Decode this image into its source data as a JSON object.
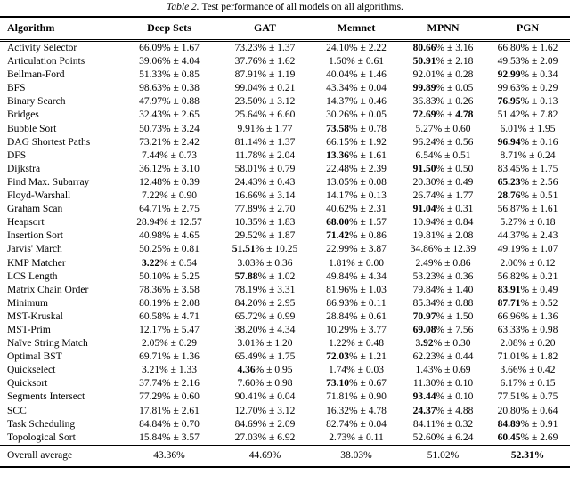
{
  "caption": {
    "label": "Table 2.",
    "text": " Test performance of all models on all algorithms."
  },
  "table": {
    "columns": [
      "Algorithm",
      "Deep Sets",
      "GAT",
      "Memnet",
      "MPNN",
      "PGN"
    ],
    "rows": [
      {
        "name": "Activity Selector",
        "cells": [
          {
            "m": "66.09",
            "s": "1.67",
            "b": 0
          },
          {
            "m": "73.23",
            "s": "1.37",
            "b": 0
          },
          {
            "m": "24.10",
            "s": "2.22",
            "b": 0
          },
          {
            "m": "80.66",
            "s": "3.16",
            "b": 1
          },
          {
            "m": "66.80",
            "s": "1.62",
            "b": 0
          }
        ]
      },
      {
        "name": "Articulation Points",
        "cells": [
          {
            "m": "39.06",
            "s": "4.04",
            "b": 0
          },
          {
            "m": "37.76",
            "s": "1.62",
            "b": 0
          },
          {
            "m": "1.50",
            "s": "0.61",
            "b": 0
          },
          {
            "m": "50.91",
            "s": "2.18",
            "b": 1
          },
          {
            "m": "49.53",
            "s": "2.09",
            "b": 0
          }
        ]
      },
      {
        "name": "Bellman-Ford",
        "cells": [
          {
            "m": "51.33",
            "s": "0.85",
            "b": 0
          },
          {
            "m": "87.91",
            "s": "1.19",
            "b": 0
          },
          {
            "m": "40.04",
            "s": "1.46",
            "b": 0
          },
          {
            "m": "92.01",
            "s": "0.28",
            "b": 0
          },
          {
            "m": "92.99",
            "s": "0.34",
            "b": 1
          }
        ]
      },
      {
        "name": "BFS",
        "cells": [
          {
            "m": "98.63",
            "s": "0.38",
            "b": 0
          },
          {
            "m": "99.04",
            "s": "0.21",
            "b": 0
          },
          {
            "m": "43.34",
            "s": "0.04",
            "b": 0
          },
          {
            "m": "99.89",
            "s": "0.05",
            "b": 1
          },
          {
            "m": "99.63",
            "s": "0.29",
            "b": 0
          }
        ]
      },
      {
        "name": "Binary Search",
        "cells": [
          {
            "m": "47.97",
            "s": "0.88",
            "b": 0
          },
          {
            "m": "23.50",
            "s": "3.12",
            "b": 0
          },
          {
            "m": "14.37",
            "s": "0.46",
            "b": 0
          },
          {
            "m": "36.83",
            "s": "0.26",
            "b": 0
          },
          {
            "m": "76.95",
            "s": "0.13",
            "b": 1
          }
        ]
      },
      {
        "name": "Bridges",
        "cells": [
          {
            "m": "32.43",
            "s": "2.65",
            "b": 0
          },
          {
            "m": "25.64",
            "s": "6.60",
            "b": 0
          },
          {
            "m": "30.26",
            "s": "0.05",
            "b": 0
          },
          {
            "m": "72.69",
            "s": "4.78",
            "b": 2
          },
          {
            "m": "51.42",
            "s": "7.82",
            "b": 0
          }
        ]
      },
      {
        "name": "Bubble Sort",
        "cells": [
          {
            "m": "50.73",
            "s": "3.24",
            "b": 0
          },
          {
            "m": "9.91",
            "s": "1.77",
            "b": 0
          },
          {
            "m": "73.58",
            "s": "0.78",
            "b": 1
          },
          {
            "m": "5.27",
            "s": "0.60",
            "b": 0
          },
          {
            "m": "6.01",
            "s": "1.95",
            "b": 0
          }
        ]
      },
      {
        "name": "DAG Shortest Paths",
        "cells": [
          {
            "m": "73.21",
            "s": "2.42",
            "b": 0
          },
          {
            "m": "81.14",
            "s": "1.37",
            "b": 0
          },
          {
            "m": "66.15",
            "s": "1.92",
            "b": 0
          },
          {
            "m": "96.24",
            "s": "0.56",
            "b": 0
          },
          {
            "m": "96.94",
            "s": "0.16",
            "b": 1
          }
        ]
      },
      {
        "name": "DFS",
        "cells": [
          {
            "m": "7.44",
            "s": "0.73",
            "b": 0
          },
          {
            "m": "11.78",
            "s": "2.04",
            "b": 0
          },
          {
            "m": "13.36",
            "s": "1.61",
            "b": 1
          },
          {
            "m": "6.54",
            "s": "0.51",
            "b": 0
          },
          {
            "m": "8.71",
            "s": "0.24",
            "b": 0
          }
        ]
      },
      {
        "name": "Dijkstra",
        "cells": [
          {
            "m": "36.12",
            "s": "3.10",
            "b": 0
          },
          {
            "m": "58.01",
            "s": "0.79",
            "b": 0
          },
          {
            "m": "22.48",
            "s": "2.39",
            "b": 0
          },
          {
            "m": "91.50",
            "s": "0.50",
            "b": 1
          },
          {
            "m": "83.45",
            "s": "1.75",
            "b": 0
          }
        ]
      },
      {
        "name": "Find Max. Subarray",
        "cells": [
          {
            "m": "12.48",
            "s": "0.39",
            "b": 0
          },
          {
            "m": "24.43",
            "s": "0.43",
            "b": 0
          },
          {
            "m": "13.05",
            "s": "0.08",
            "b": 0
          },
          {
            "m": "20.30",
            "s": "0.49",
            "b": 0
          },
          {
            "m": "65.23",
            "s": "2.56",
            "b": 1
          }
        ]
      },
      {
        "name": "Floyd-Warshall",
        "cells": [
          {
            "m": "7.22",
            "s": "0.90",
            "b": 0
          },
          {
            "m": "16.66",
            "s": "3.14",
            "b": 0
          },
          {
            "m": "14.17",
            "s": "0.13",
            "b": 0
          },
          {
            "m": "26.74",
            "s": "1.77",
            "b": 0
          },
          {
            "m": "28.76",
            "s": "0.51",
            "b": 1
          }
        ]
      },
      {
        "name": "Graham Scan",
        "cells": [
          {
            "m": "64.71",
            "s": "2.75",
            "b": 0
          },
          {
            "m": "77.89",
            "s": "2.70",
            "b": 0
          },
          {
            "m": "40.62",
            "s": "2.31",
            "b": 0
          },
          {
            "m": "91.04",
            "s": "0.31",
            "b": 1
          },
          {
            "m": "56.87",
            "s": "1.61",
            "b": 0
          }
        ]
      },
      {
        "name": "Heapsort",
        "cells": [
          {
            "m": "28.94",
            "s": "12.57",
            "b": 0
          },
          {
            "m": "10.35",
            "s": "1.83",
            "b": 0
          },
          {
            "m": "68.00",
            "s": "1.57",
            "b": 1
          },
          {
            "m": "10.94",
            "s": "0.84",
            "b": 0
          },
          {
            "m": "5.27",
            "s": "0.18",
            "b": 0
          }
        ]
      },
      {
        "name": "Insertion Sort",
        "cells": [
          {
            "m": "40.98",
            "s": "4.65",
            "b": 0
          },
          {
            "m": "29.52",
            "s": "1.87",
            "b": 0
          },
          {
            "m": "71.42",
            "s": "0.86",
            "b": 1
          },
          {
            "m": "19.81",
            "s": "2.08",
            "b": 0
          },
          {
            "m": "44.37",
            "s": "2.43",
            "b": 0
          }
        ]
      },
      {
        "name": "Jarvis' March",
        "cells": [
          {
            "m": "50.25",
            "s": "0.81",
            "b": 0
          },
          {
            "m": "51.51",
            "s": "10.25",
            "b": 1
          },
          {
            "m": "22.99",
            "s": "3.87",
            "b": 0
          },
          {
            "m": "34.86",
            "s": "12.39",
            "b": 0
          },
          {
            "m": "49.19",
            "s": "1.07",
            "b": 0
          }
        ]
      },
      {
        "name": "KMP Matcher",
        "cells": [
          {
            "m": "3.22",
            "s": "0.54",
            "b": 1
          },
          {
            "m": "3.03",
            "s": "0.36",
            "b": 0
          },
          {
            "m": "1.81",
            "s": "0.00",
            "b": 0
          },
          {
            "m": "2.49",
            "s": "0.86",
            "b": 0
          },
          {
            "m": "2.00",
            "s": "0.12",
            "b": 0
          }
        ]
      },
      {
        "name": "LCS Length",
        "cells": [
          {
            "m": "50.10",
            "s": "5.25",
            "b": 0
          },
          {
            "m": "57.88",
            "s": "1.02",
            "b": 1
          },
          {
            "m": "49.84",
            "s": "4.34",
            "b": 0
          },
          {
            "m": "53.23",
            "s": "0.36",
            "b": 0
          },
          {
            "m": "56.82",
            "s": "0.21",
            "b": 0
          }
        ]
      },
      {
        "name": "Matrix Chain Order",
        "cells": [
          {
            "m": "78.36",
            "s": "3.58",
            "b": 0
          },
          {
            "m": "78.19",
            "s": "3.31",
            "b": 0
          },
          {
            "m": "81.96",
            "s": "1.03",
            "b": 0
          },
          {
            "m": "79.84",
            "s": "1.40",
            "b": 0
          },
          {
            "m": "83.91",
            "s": "0.49",
            "b": 1
          }
        ]
      },
      {
        "name": "Minimum",
        "cells": [
          {
            "m": "80.19",
            "s": "2.08",
            "b": 0
          },
          {
            "m": "84.20",
            "s": "2.95",
            "b": 0
          },
          {
            "m": "86.93",
            "s": "0.11",
            "b": 0
          },
          {
            "m": "85.34",
            "s": "0.88",
            "b": 0
          },
          {
            "m": "87.71",
            "s": "0.52",
            "b": 1
          }
        ]
      },
      {
        "name": "MST-Kruskal",
        "cells": [
          {
            "m": "60.58",
            "s": "4.71",
            "b": 0
          },
          {
            "m": "65.72",
            "s": "0.99",
            "b": 0
          },
          {
            "m": "28.84",
            "s": "0.61",
            "b": 0
          },
          {
            "m": "70.97",
            "s": "1.50",
            "b": 1
          },
          {
            "m": "66.96",
            "s": "1.36",
            "b": 0
          }
        ]
      },
      {
        "name": "MST-Prim",
        "cells": [
          {
            "m": "12.17",
            "s": "5.47",
            "b": 0
          },
          {
            "m": "38.20",
            "s": "4.34",
            "b": 0
          },
          {
            "m": "10.29",
            "s": "3.77",
            "b": 0
          },
          {
            "m": "69.08",
            "s": "7.56",
            "b": 1
          },
          {
            "m": "63.33",
            "s": "0.98",
            "b": 0
          }
        ]
      },
      {
        "name": "Naïve String Match",
        "cells": [
          {
            "m": "2.05",
            "s": "0.29",
            "b": 0
          },
          {
            "m": "3.01",
            "s": "1.20",
            "b": 0
          },
          {
            "m": "1.22",
            "s": "0.48",
            "b": 0
          },
          {
            "m": "3.92",
            "s": "0.30",
            "b": 1
          },
          {
            "m": "2.08",
            "s": "0.20",
            "b": 0
          }
        ]
      },
      {
        "name": "Optimal BST",
        "cells": [
          {
            "m": "69.71",
            "s": "1.36",
            "b": 0
          },
          {
            "m": "65.49",
            "s": "1.75",
            "b": 0
          },
          {
            "m": "72.03",
            "s": "1.21",
            "b": 1
          },
          {
            "m": "62.23",
            "s": "0.44",
            "b": 0
          },
          {
            "m": "71.01",
            "s": "1.82",
            "b": 0
          }
        ]
      },
      {
        "name": "Quickselect",
        "cells": [
          {
            "m": "3.21",
            "s": "1.33",
            "b": 0
          },
          {
            "m": "4.36",
            "s": "0.95",
            "b": 1
          },
          {
            "m": "1.74",
            "s": "0.03",
            "b": 0
          },
          {
            "m": "1.43",
            "s": "0.69",
            "b": 0
          },
          {
            "m": "3.66",
            "s": "0.42",
            "b": 0
          }
        ]
      },
      {
        "name": "Quicksort",
        "cells": [
          {
            "m": "37.74",
            "s": "2.16",
            "b": 0
          },
          {
            "m": "7.60",
            "s": "0.98",
            "b": 0
          },
          {
            "m": "73.10",
            "s": "0.67",
            "b": 1
          },
          {
            "m": "11.30",
            "s": "0.10",
            "b": 0
          },
          {
            "m": "6.17",
            "s": "0.15",
            "b": 0
          }
        ]
      },
      {
        "name": "Segments Intersect",
        "cells": [
          {
            "m": "77.29",
            "s": "0.60",
            "b": 0
          },
          {
            "m": "90.41",
            "s": "0.04",
            "b": 0
          },
          {
            "m": "71.81",
            "s": "0.90",
            "b": 0
          },
          {
            "m": "93.44",
            "s": "0.10",
            "b": 1
          },
          {
            "m": "77.51",
            "s": "0.75",
            "b": 0
          }
        ]
      },
      {
        "name": "SCC",
        "cells": [
          {
            "m": "17.81",
            "s": "2.61",
            "b": 0
          },
          {
            "m": "12.70",
            "s": "3.12",
            "b": 0
          },
          {
            "m": "16.32",
            "s": "4.78",
            "b": 0
          },
          {
            "m": "24.37",
            "s": "4.88",
            "b": 1
          },
          {
            "m": "20.80",
            "s": "0.64",
            "b": 0
          }
        ]
      },
      {
        "name": "Task Scheduling",
        "cells": [
          {
            "m": "84.84",
            "s": "0.70",
            "b": 0
          },
          {
            "m": "84.69",
            "s": "2.09",
            "b": 0
          },
          {
            "m": "82.74",
            "s": "0.04",
            "b": 0
          },
          {
            "m": "84.11",
            "s": "0.32",
            "b": 0
          },
          {
            "m": "84.89",
            "s": "0.91",
            "b": 1
          }
        ]
      },
      {
        "name": "Topological Sort",
        "cells": [
          {
            "m": "15.84",
            "s": "3.57",
            "b": 0
          },
          {
            "m": "27.03",
            "s": "6.92",
            "b": 0
          },
          {
            "m": "2.73",
            "s": "0.11",
            "b": 0
          },
          {
            "m": "52.60",
            "s": "6.24",
            "b": 0
          },
          {
            "m": "60.45",
            "s": "2.69",
            "b": 1
          }
        ]
      }
    ],
    "footer": {
      "label": "Overall average",
      "values": [
        {
          "v": "43.36%",
          "b": false
        },
        {
          "v": "44.69%",
          "b": false
        },
        {
          "v": "38.03%",
          "b": false
        },
        {
          "v": "51.02%",
          "b": false
        },
        {
          "v": "52.31%",
          "b": true
        }
      ]
    }
  }
}
